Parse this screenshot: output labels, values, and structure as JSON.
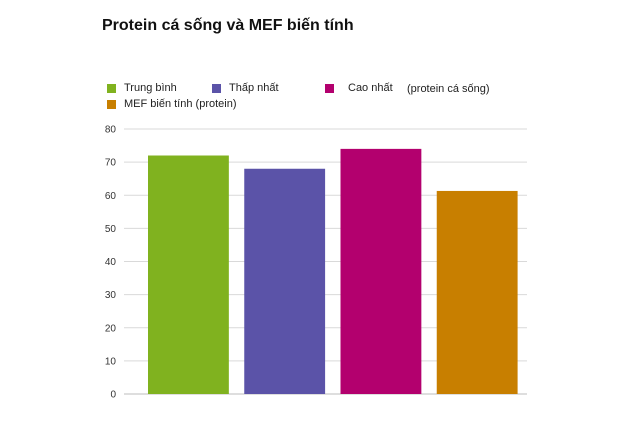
{
  "chart_data": {
    "type": "bar",
    "title": "Protein cá sống và MEF biến tính",
    "categories": [
      "Trung bình",
      "Thấp nhất",
      "Cao nhất",
      "MEF biến tính (protein)"
    ],
    "values": [
      72,
      68,
      74,
      61.3
    ],
    "colors": [
      "#80b21f",
      "#5b53a8",
      "#b3006e",
      "#c87f00"
    ],
    "legend": {
      "entries": [
        "Trung bình",
        "Thấp nhất",
        "Cao nhất",
        "MEF biến tính (protein)"
      ],
      "note": "(protein cá sống)",
      "placement": "top"
    },
    "yticks": [
      "0",
      "10",
      "20",
      "30",
      "40",
      "50",
      "60",
      "70",
      "80"
    ],
    "ylim": [
      0,
      80
    ],
    "grid": true
  }
}
